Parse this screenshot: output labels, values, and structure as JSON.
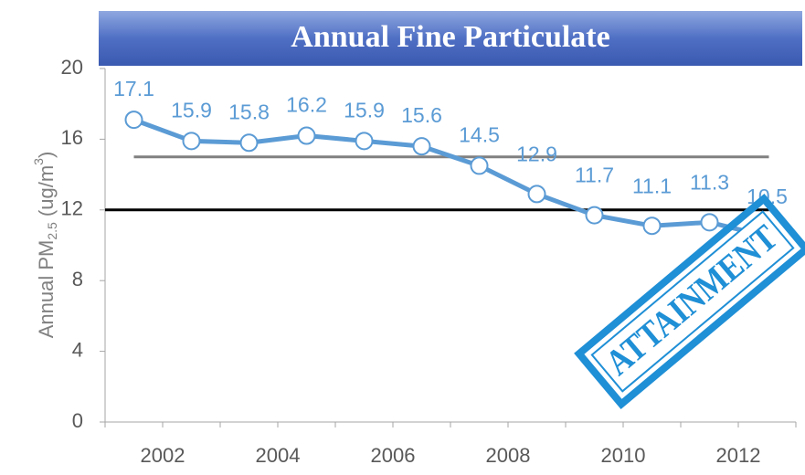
{
  "chart_data": {
    "type": "line",
    "title": "Annual Fine Particulate",
    "y_label": [
      "Annual PM",
      "2.5",
      " (ug/m",
      "3",
      ")"
    ],
    "categories": [
      "2002",
      null,
      "2004",
      null,
      "2006",
      null,
      "2008",
      null,
      "2010",
      null,
      "2012",
      null
    ],
    "series": [
      {
        "color": "#5b9bd5",
        "values": [
          17.1,
          15.9,
          15.8,
          16.2,
          15.9,
          15.6,
          14.5,
          12.9,
          11.7,
          11.1,
          11.3,
          10.5
        ]
      }
    ],
    "reference_lines": [
      {
        "value": 15,
        "color": "#808080"
      },
      {
        "value": 12,
        "color": "#000000"
      }
    ],
    "ylim": [
      0,
      20
    ],
    "yticks": [
      0,
      4,
      8,
      12,
      16,
      20
    ],
    "grid": false,
    "annotation": "ATTAINMENT"
  }
}
